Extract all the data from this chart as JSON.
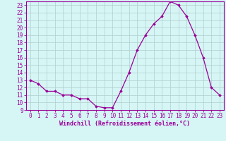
{
  "x": [
    0,
    1,
    2,
    3,
    4,
    5,
    6,
    7,
    8,
    9,
    10,
    11,
    12,
    13,
    14,
    15,
    16,
    17,
    18,
    19,
    20,
    21,
    22,
    23
  ],
  "y": [
    13,
    12.5,
    11.5,
    11.5,
    11,
    11,
    10.5,
    10.5,
    9.5,
    9.3,
    9.3,
    11.5,
    14,
    17,
    19,
    20.5,
    21.5,
    23.5,
    23,
    21.5,
    19,
    16,
    12,
    11
  ],
  "line_color": "#990099",
  "marker": "D",
  "marker_size": 1.8,
  "bg_color": "#d6f5f5",
  "grid_color": "#b0cece",
  "xlabel": "Windchill (Refroidissement éolien,°C)",
  "xlabel_color": "#990099",
  "yticks": [
    9,
    10,
    11,
    12,
    13,
    14,
    15,
    16,
    17,
    18,
    19,
    20,
    21,
    22,
    23
  ],
  "xticks": [
    0,
    1,
    2,
    3,
    4,
    5,
    6,
    7,
    8,
    9,
    10,
    11,
    12,
    13,
    14,
    15,
    16,
    17,
    18,
    19,
    20,
    21,
    22,
    23
  ],
  "ylim": [
    9,
    23.5
  ],
  "xlim": [
    -0.5,
    23.5
  ],
  "tick_color": "#990099",
  "spine_color": "#990099",
  "tick_fontsize": 5.5,
  "xlabel_fontsize": 6.0,
  "linewidth": 0.9
}
